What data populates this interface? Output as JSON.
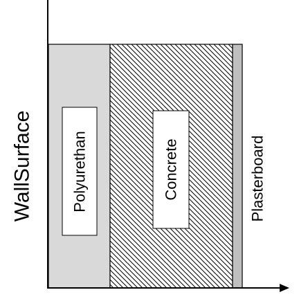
{
  "axis_label": "WallSurface",
  "layers": [
    {
      "name": "polyurethane",
      "label": "Polyurethan",
      "fill": "#d9d9d9",
      "pattern": "solid"
    },
    {
      "name": "concrete",
      "label": "Concrete",
      "fill": "#ffffff",
      "pattern": "diagonal-hatch"
    },
    {
      "name": "plasterboard",
      "label": "Plasterboard",
      "fill": "#bfbfbf",
      "pattern": "solid"
    }
  ],
  "colors": {
    "stroke": "#000000",
    "background": "#ffffff"
  }
}
